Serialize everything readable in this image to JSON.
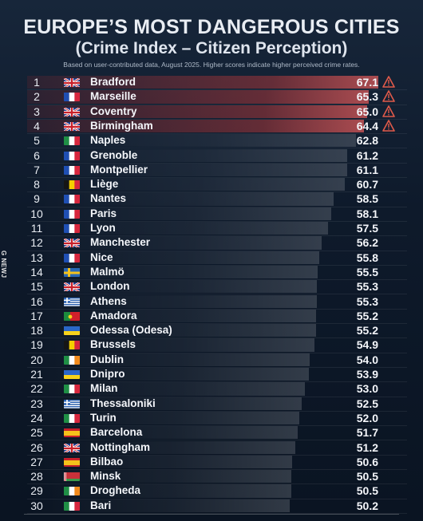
{
  "header": {
    "title": "EUROPE’S MOST DANGEROUS CITIES",
    "subtitle": "(Crime Index – Citizen Perception)",
    "note": "Based on user-contributed data, August 2025. Higher scores indicate higher perceived crime rates."
  },
  "watermark": "G NEWJ",
  "colors": {
    "background": "#0b1422",
    "highlight": "#c83c3c",
    "warning": "#e05a4a"
  },
  "chart_data": {
    "type": "bar",
    "title": "EUROPE’S MOST DANGEROUS CITIES",
    "subtitle": "(Crime Index – Citizen Perception)",
    "xlabel": "",
    "ylabel": "",
    "xlim": [
      0,
      67.1
    ],
    "categories": [
      "Bradford",
      "Marseille",
      "Coventry",
      "Birmingham",
      "Naples",
      "Grenoble",
      "Montpellier",
      "Liège",
      "Nantes",
      "Paris",
      "Lyon",
      "Manchester",
      "Nice",
      "Malmö",
      "London",
      "Athens",
      "Amadora",
      "Odessa (Odesa)",
      "Brussels",
      "Dublin",
      "Dnipro",
      "Milan",
      "Thessaloniki",
      "Turin",
      "Barcelona",
      "Nottingham",
      "Bilbao",
      "Minsk",
      "Drogheda",
      "Bari"
    ],
    "values": [
      67.1,
      65.3,
      65.0,
      64.4,
      62.8,
      61.2,
      61.1,
      60.7,
      58.5,
      58.1,
      57.5,
      56.2,
      55.8,
      55.5,
      55.3,
      55.3,
      55.2,
      55.2,
      54.9,
      54.0,
      53.9,
      53.0,
      52.5,
      52.0,
      51.7,
      51.2,
      50.6,
      50.5,
      50.5,
      50.2
    ],
    "rows": [
      {
        "rank": "1",
        "city": "Bradford",
        "score": "67.1",
        "flag": "uk",
        "warn": true
      },
      {
        "rank": "2",
        "city": "Marseille",
        "score": "65.3",
        "flag": "fr",
        "warn": true
      },
      {
        "rank": "3",
        "city": "Coventry",
        "score": "65.0",
        "flag": "uk",
        "warn": true
      },
      {
        "rank": "4",
        "city": "Birmingham",
        "score": "64.4",
        "flag": "uk",
        "warn": true
      },
      {
        "rank": "5",
        "city": "Naples",
        "score": "62.8",
        "flag": "it",
        "warn": false
      },
      {
        "rank": "6",
        "city": "Grenoble",
        "score": "61.2",
        "flag": "fr",
        "warn": false
      },
      {
        "rank": "7",
        "city": "Montpellier",
        "score": "61.1",
        "flag": "fr",
        "warn": false
      },
      {
        "rank": "8",
        "city": "Liège",
        "score": "60.7",
        "flag": "be",
        "warn": false
      },
      {
        "rank": "9",
        "city": "Nantes",
        "score": "58.5",
        "flag": "fr",
        "warn": false
      },
      {
        "rank": "10",
        "city": "Paris",
        "score": "58.1",
        "flag": "fr",
        "warn": false
      },
      {
        "rank": "11",
        "city": "Lyon",
        "score": "57.5",
        "flag": "fr",
        "warn": false
      },
      {
        "rank": "12",
        "city": "Manchester",
        "score": "56.2",
        "flag": "uk",
        "warn": false
      },
      {
        "rank": "13",
        "city": "Nice",
        "score": "55.8",
        "flag": "fr",
        "warn": false
      },
      {
        "rank": "14",
        "city": "Malmö",
        "score": "55.5",
        "flag": "se",
        "warn": false
      },
      {
        "rank": "15",
        "city": "London",
        "score": "55.3",
        "flag": "uk",
        "warn": false
      },
      {
        "rank": "16",
        "city": "Athens",
        "score": "55.3",
        "flag": "gr",
        "warn": false
      },
      {
        "rank": "17",
        "city": "Amadora",
        "score": "55.2",
        "flag": "pt",
        "warn": false
      },
      {
        "rank": "18",
        "city": "Odessa (Odesa)",
        "score": "55.2",
        "flag": "ua",
        "warn": false
      },
      {
        "rank": "19",
        "city": "Brussels",
        "score": "54.9",
        "flag": "be",
        "warn": false
      },
      {
        "rank": "20",
        "city": "Dublin",
        "score": "54.0",
        "flag": "ie",
        "warn": false
      },
      {
        "rank": "21",
        "city": "Dnipro",
        "score": "53.9",
        "flag": "ua",
        "warn": false
      },
      {
        "rank": "22",
        "city": "Milan",
        "score": "53.0",
        "flag": "it",
        "warn": false
      },
      {
        "rank": "23",
        "city": "Thessaloniki",
        "score": "52.5",
        "flag": "gr",
        "warn": false
      },
      {
        "rank": "24",
        "city": "Turin",
        "score": "52.0",
        "flag": "it",
        "warn": false
      },
      {
        "rank": "25",
        "city": "Barcelona",
        "score": "51.7",
        "flag": "es",
        "warn": false
      },
      {
        "rank": "26",
        "city": "Nottingham",
        "score": "51.2",
        "flag": "uk",
        "warn": false
      },
      {
        "rank": "27",
        "city": "Bilbao",
        "score": "50.6",
        "flag": "es",
        "warn": false
      },
      {
        "rank": "28",
        "city": "Minsk",
        "score": "50.5",
        "flag": "by",
        "warn": false
      },
      {
        "rank": "29",
        "city": "Drogheda",
        "score": "50.5",
        "flag": "ie",
        "warn": false
      },
      {
        "rank": "30",
        "city": "Bari",
        "score": "50.2",
        "flag": "it",
        "warn": false
      }
    ]
  }
}
